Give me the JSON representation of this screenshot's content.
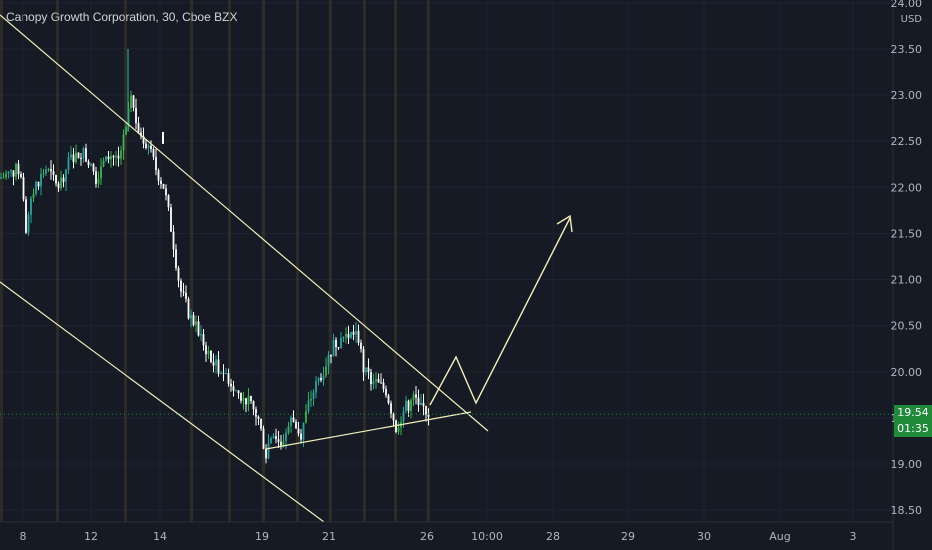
{
  "chart_title": "Canopy Growth Corporation, 30, Cboe BZX",
  "currency": "USD",
  "last_price": "19.54",
  "countdown": "01:35",
  "colors": {
    "background": "#161a25",
    "up": "#26a69a",
    "up_alt": "#3bb54a",
    "down": "#ffffff",
    "trendline": "#f2efb8",
    "price_line": "#1f8a3a",
    "session_band": "#6b5a2a"
  },
  "chart_data": {
    "type": "candlestick",
    "title": "Canopy Growth Corporation, 30, Cboe BZX",
    "ylabel": "USD",
    "ylim": [
      18.4,
      24.0
    ],
    "y_ticks": [
      "24.00",
      "23.50",
      "23.00",
      "22.50",
      "22.00",
      "21.50",
      "21.00",
      "20.50",
      "20.00",
      "19.50",
      "19.00",
      "18.50"
    ],
    "x_ticks": [
      "8",
      "12",
      "14",
      "19",
      "21",
      "26",
      "10:00",
      "28",
      "29",
      "30",
      "Aug",
      "3"
    ],
    "series": [
      {
        "approx_close_path": [
          {
            "x": "8",
            "y": 22.1
          },
          {
            "x": "12",
            "y": 22.3
          },
          {
            "x": "13",
            "y": 23.0
          },
          {
            "x": "14",
            "y": 22.4
          },
          {
            "x": "15",
            "y": 21.0
          },
          {
            "x": "16",
            "y": 20.2
          },
          {
            "x": "19",
            "y": 19.1
          },
          {
            "x": "20",
            "y": 19.6
          },
          {
            "x": "21",
            "y": 20.3
          },
          {
            "x": "22",
            "y": 20.4
          },
          {
            "x": "23",
            "y": 19.8
          },
          {
            "x": "26",
            "y": 19.54
          }
        ]
      }
    ],
    "annotations": [
      "descending channel upper line",
      "descending channel lower line",
      "rising support line",
      "projected zigzag path with arrow"
    ],
    "grid": true
  }
}
